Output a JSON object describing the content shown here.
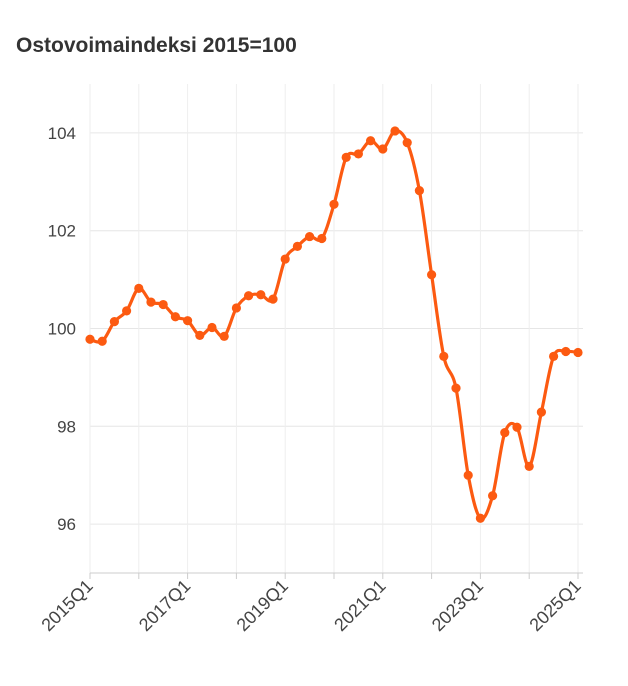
{
  "chart_data": {
    "type": "line",
    "title": "Ostovoimaindeksi 2015=100",
    "xlabel": "",
    "ylabel": "",
    "ylim": [
      95,
      105
    ],
    "yticks": [
      96,
      98,
      100,
      102,
      104
    ],
    "xtick_labels": [
      "2015Q1",
      "2017Q1",
      "2019Q1",
      "2021Q1",
      "2023Q1",
      "2025Q1"
    ],
    "color": "#fc5a11",
    "grid": true,
    "x": [
      "2015Q1",
      "2015Q2",
      "2015Q3",
      "2015Q4",
      "2016Q1",
      "2016Q2",
      "2016Q3",
      "2016Q4",
      "2017Q1",
      "2017Q2",
      "2017Q3",
      "2017Q4",
      "2018Q1",
      "2018Q2",
      "2018Q3",
      "2018Q4",
      "2019Q1",
      "2019Q2",
      "2019Q3",
      "2019Q4",
      "2020Q1",
      "2020Q2",
      "2020Q3",
      "2020Q4",
      "2021Q1",
      "2021Q2",
      "2021Q3",
      "2021Q4",
      "2022Q1",
      "2022Q2",
      "2022Q3",
      "2022Q4",
      "2023Q1",
      "2023Q2",
      "2023Q3",
      "2023Q4",
      "2024Q1",
      "2024Q2",
      "2024Q3",
      "2024Q4",
      "2025Q1"
    ],
    "series": [
      {
        "values": [
          99.78,
          99.74,
          100.14,
          100.36,
          100.82,
          100.54,
          100.49,
          100.24,
          100.16,
          99.86,
          100.02,
          99.84,
          100.42,
          100.67,
          100.69,
          100.6,
          101.42,
          101.68,
          101.88,
          101.84,
          102.54,
          103.5,
          103.57,
          103.84,
          103.67,
          104.04,
          103.8,
          102.82,
          101.1,
          99.43,
          98.78,
          97.0,
          96.12,
          96.58,
          97.87,
          97.98,
          97.18,
          98.29,
          99.43,
          99.53,
          99.51
        ]
      }
    ]
  }
}
